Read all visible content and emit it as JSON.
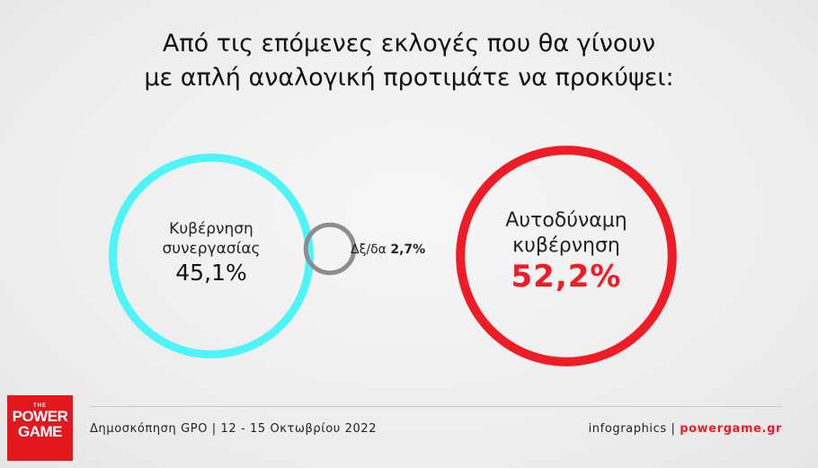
{
  "title": {
    "line1": "Από τις επόμενες εκλογές που θα γίνουν",
    "line2": "με απλή αναλογική προτιμάτε να προκύψει:"
  },
  "chart_data": {
    "type": "bubble",
    "title": "Από τις επόμενες εκλογές που θα γίνουν με απλή αναλογική προτιμάτε να προκύψει:",
    "series": [
      {
        "name": "Κυβέρνηση συνεργασίας",
        "line1": "Κυβέρνηση",
        "line2": "συνεργασίας",
        "value": 45.1,
        "display": "45,1%",
        "color": "#4ef4f8"
      },
      {
        "name": "Δξ/δα",
        "value": 2.7,
        "display": "2,7%",
        "color": "#8d8d8d"
      },
      {
        "name": "Αυτοδύναμη κυβέρνηση",
        "line1": "Αυτοδύναμη",
        "line2": "κυβέρνηση",
        "value": 52.2,
        "display": "52,2%",
        "color": "#ee1c25"
      }
    ]
  },
  "footer": {
    "source": "Δημοσκόπηση GPO | 12 - 15 Οκτωβρίου 2022",
    "credit_prefix": "infographics",
    "credit_sep": "|",
    "credit_site": "powergame.gr"
  },
  "logo": {
    "top": "THE",
    "line1": "POWER",
    "line2": "GAME"
  },
  "colors": {
    "accent": "#ee1c25",
    "cyan": "#4ef4f8",
    "grey": "#8d8d8d"
  }
}
